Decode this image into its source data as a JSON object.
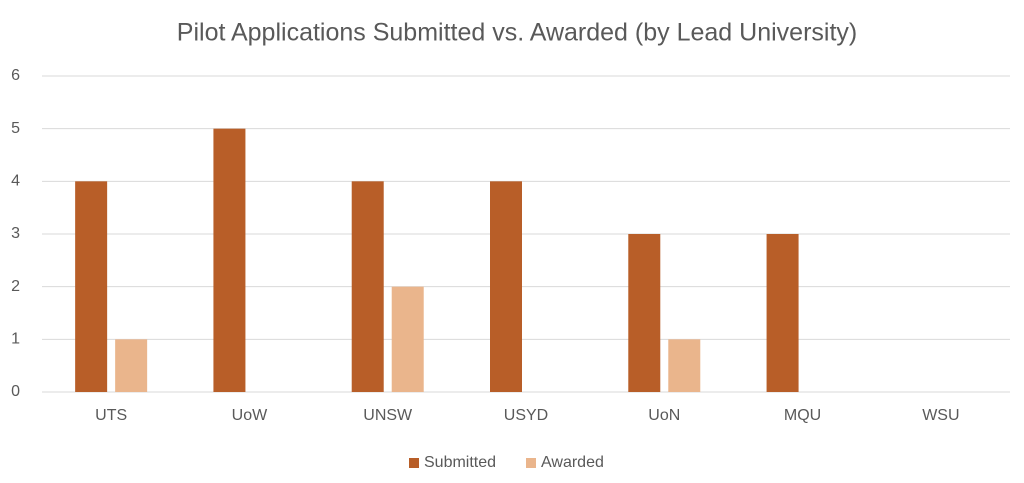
{
  "chart_data": {
    "type": "bar",
    "title": "Pilot Applications Submitted vs. Awarded (by Lead University)",
    "categories": [
      "UTS",
      "UoW",
      "UNSW",
      "USYD",
      "UoN",
      "MQU",
      "WSU"
    ],
    "series": [
      {
        "name": "Submitted",
        "color": "#b85e28",
        "values": [
          4,
          5,
          4,
          4,
          3,
          3,
          0
        ]
      },
      {
        "name": "Awarded",
        "color": "#eab58c",
        "values": [
          1,
          0,
          2,
          0,
          1,
          0,
          0
        ]
      }
    ],
    "ylim": [
      0,
      6
    ],
    "yticks": [
      0,
      1,
      2,
      3,
      4,
      5,
      6
    ],
    "grid": true,
    "legend": "bottom"
  }
}
